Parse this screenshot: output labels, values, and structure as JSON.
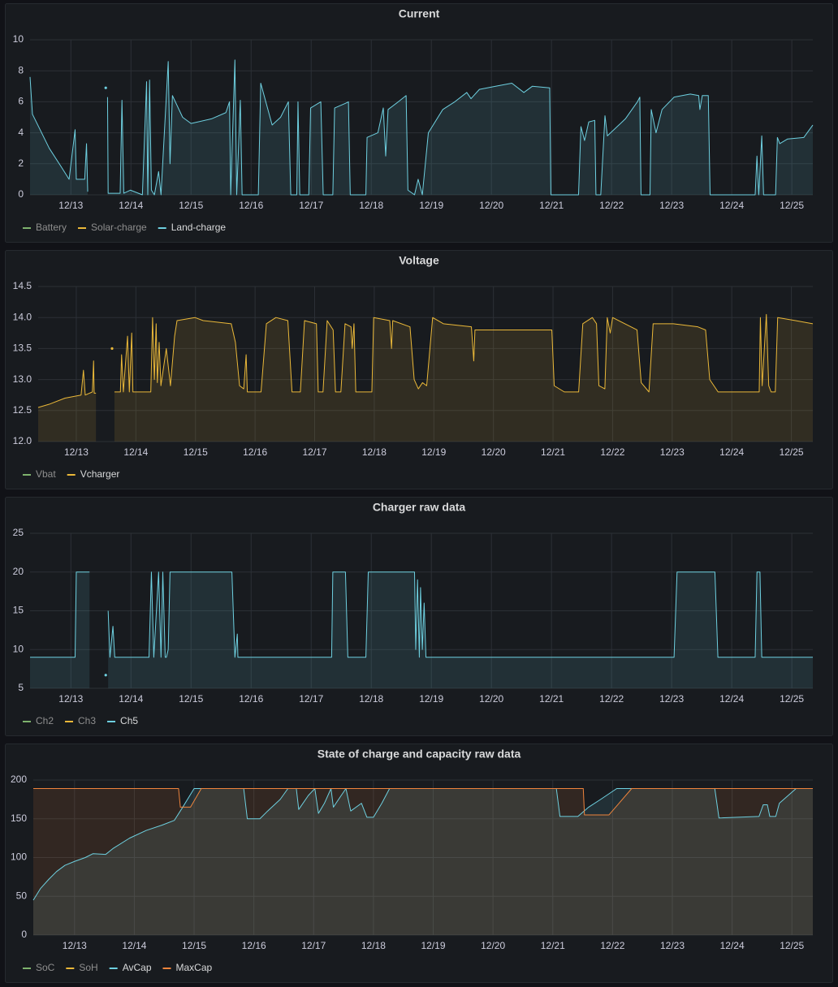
{
  "chart_data": [
    {
      "type": "line",
      "title": "Current",
      "grid": true,
      "xlim": [
        12.32,
        25.35
      ],
      "ylim": [
        0,
        10
      ],
      "yticks": [
        0,
        2,
        4,
        6,
        8,
        10
      ],
      "xticks": [
        {
          "value": 13,
          "label": "12/13"
        },
        {
          "value": 14,
          "label": "12/14"
        },
        {
          "value": 15,
          "label": "12/15"
        },
        {
          "value": 16,
          "label": "12/16"
        },
        {
          "value": 17,
          "label": "12/17"
        },
        {
          "value": 18,
          "label": "12/18"
        },
        {
          "value": 19,
          "label": "12/19"
        },
        {
          "value": 20,
          "label": "12/20"
        },
        {
          "value": 21,
          "label": "12/21"
        },
        {
          "value": 22,
          "label": "12/22"
        },
        {
          "value": 23,
          "label": "12/23"
        },
        {
          "value": 24,
          "label": "12/24"
        },
        {
          "value": 25,
          "label": "12/25"
        }
      ],
      "series": [
        {
          "name": "Battery",
          "color": "#7EB26D",
          "x": [],
          "values": []
        },
        {
          "name": "Solar-charge",
          "color": "#EAB839",
          "x": [],
          "values": []
        },
        {
          "name": "Land-charge",
          "color": "#6ED0E0",
          "x": [
            12.32,
            12.36,
            12.64,
            12.84,
            12.97,
            13.07,
            13.09,
            13.23,
            13.26,
            13.28,
            13.45,
            13.58,
            13.6,
            13.61,
            13.62,
            13.82,
            13.85,
            13.88,
            13.99,
            14.19,
            14.26,
            14.28,
            14.31,
            14.34,
            14.39,
            14.46,
            14.5,
            14.62,
            14.65,
            14.69,
            14.86,
            15.0,
            15.34,
            15.58,
            15.64,
            15.66,
            15.73,
            15.76,
            15.82,
            15.85,
            16.12,
            16.16,
            16.35,
            16.49,
            16.62,
            16.66,
            16.76,
            16.78,
            16.81,
            16.96,
            16.99,
            17.16,
            17.2,
            17.36,
            17.39,
            17.57,
            17.62,
            17.65,
            17.91,
            17.93,
            18.11,
            18.2,
            18.24,
            18.28,
            18.45,
            18.58,
            18.61,
            18.72,
            18.78,
            18.85,
            18.95,
            19.19,
            19.39,
            19.59,
            19.66,
            19.8,
            20.07,
            20.34,
            20.54,
            20.68,
            20.97,
            20.99,
            21.45,
            21.49,
            21.55,
            21.62,
            21.72,
            21.74,
            21.82,
            21.89,
            21.93,
            22.23,
            22.43,
            22.47,
            22.49,
            22.64,
            22.66,
            22.74,
            22.84,
            23.04,
            23.31,
            23.45,
            23.47,
            23.51,
            23.61,
            23.64,
            24.39,
            24.42,
            24.45,
            24.5,
            24.53,
            24.73,
            24.76,
            24.8,
            24.93,
            25.2,
            25.35
          ],
          "values": [
            7.6,
            5.2,
            3,
            1.8,
            1,
            4.2,
            1,
            1,
            3.3,
            0.2,
            null,
            6.9,
            null,
            6.3,
            0.1,
            0.1,
            6.1,
            0.1,
            0.3,
            0,
            7.3,
            0,
            7.4,
            0.3,
            0,
            1.5,
            0,
            8.6,
            2,
            6.4,
            5,
            4.6,
            4.9,
            5.3,
            6,
            0,
            8.7,
            0,
            6.1,
            0,
            0,
            7.2,
            4.5,
            5,
            6,
            0,
            0,
            6,
            0,
            0,
            5.6,
            6,
            0,
            0,
            5.6,
            5.9,
            6,
            0,
            0,
            3.7,
            4,
            5.6,
            2.5,
            5.5,
            6,
            6.4,
            0.3,
            0,
            1,
            0,
            4,
            5.5,
            6,
            6.6,
            6.2,
            6.8,
            7,
            7.2,
            6.6,
            7,
            6.9,
            0,
            0,
            4.4,
            3.5,
            4.7,
            4.8,
            0,
            0,
            5.1,
            3.8,
            4.9,
            6,
            6.3,
            0,
            0,
            5.5,
            4,
            5.5,
            6.3,
            6.5,
            6.4,
            5.5,
            6.4,
            6.4,
            0,
            0,
            2.5,
            0,
            3.8,
            0,
            0,
            3.7,
            3.3,
            3.6,
            3.7,
            4.5
          ]
        }
      ]
    },
    {
      "type": "line",
      "title": "Voltage",
      "grid": true,
      "xlim": [
        12.36,
        25.36
      ],
      "ylim": [
        12,
        14.5
      ],
      "yticks": [
        {
          "value": 12,
          "label": "12.0"
        },
        {
          "value": 12.5,
          "label": "12.5"
        },
        {
          "value": 13,
          "label": "13.0"
        },
        {
          "value": 13.5,
          "label": "13.5"
        },
        {
          "value": 14,
          "label": "14.0"
        },
        {
          "value": 14.5,
          "label": "14.5"
        }
      ],
      "xticks": [
        {
          "value": 13,
          "label": "12/13"
        },
        {
          "value": 14,
          "label": "12/14"
        },
        {
          "value": 15,
          "label": "12/15"
        },
        {
          "value": 16,
          "label": "12/16"
        },
        {
          "value": 17,
          "label": "12/17"
        },
        {
          "value": 18,
          "label": "12/18"
        },
        {
          "value": 19,
          "label": "12/19"
        },
        {
          "value": 20,
          "label": "12/20"
        },
        {
          "value": 21,
          "label": "12/21"
        },
        {
          "value": 22,
          "label": "12/22"
        },
        {
          "value": 23,
          "label": "12/23"
        },
        {
          "value": 24,
          "label": "12/24"
        },
        {
          "value": 25,
          "label": "12/25"
        }
      ],
      "series": [
        {
          "name": "Vbat",
          "color": "#7EB26D",
          "x": [],
          "values": []
        },
        {
          "name": "Vcharger",
          "color": "#EAB839",
          "x": [
            12.36,
            12.54,
            12.81,
            13.08,
            13.12,
            13.15,
            13.27,
            13.29,
            13.3,
            13.33,
            13.45,
            13.6,
            13.62,
            13.64,
            13.74,
            13.76,
            13.79,
            13.86,
            13.89,
            13.93,
            13.95,
            14.04,
            14.25,
            14.28,
            14.31,
            14.34,
            14.36,
            14.39,
            14.42,
            14.51,
            14.58,
            14.65,
            14.69,
            14.99,
            15.13,
            15.6,
            15.67,
            15.74,
            15.81,
            15.85,
            15.87,
            16.1,
            16.19,
            16.35,
            16.55,
            16.62,
            16.76,
            16.83,
            17.03,
            17.06,
            17.14,
            17.21,
            17.31,
            17.35,
            17.44,
            17.51,
            17.61,
            17.63,
            17.66,
            17.69,
            17.96,
            17.99,
            18.26,
            18.29,
            18.31,
            18.6,
            18.67,
            18.74,
            18.81,
            18.88,
            18.98,
            19.16,
            19.63,
            19.67,
            19.69,
            20.3,
            20.98,
            21.02,
            21.19,
            21.43,
            21.5,
            21.66,
            21.73,
            21.77,
            21.87,
            21.91,
            21.96,
            22.0,
            22.41,
            22.48,
            22.61,
            22.68,
            23.02,
            23.43,
            23.56,
            23.63,
            23.77,
            24.39,
            24.46,
            24.48,
            24.51,
            24.58,
            24.62,
            24.66,
            24.73,
            24.77,
            25.07,
            25.36
          ],
          "values": [
            12.55,
            12.6,
            12.7,
            12.75,
            13.15,
            12.75,
            12.8,
            13.3,
            12.78,
            12.78,
            null,
            13.5,
            null,
            12.8,
            12.8,
            13.4,
            12.8,
            13.7,
            12.8,
            13.75,
            12.8,
            12.8,
            12.8,
            14.0,
            13.0,
            13.9,
            12.95,
            13.6,
            12.9,
            13.5,
            12.9,
            13.7,
            13.95,
            14.0,
            13.95,
            13.9,
            13.6,
            12.9,
            12.85,
            13.4,
            12.8,
            12.8,
            13.9,
            14.0,
            13.95,
            12.8,
            12.8,
            13.95,
            13.9,
            12.8,
            12.8,
            13.95,
            13.8,
            12.8,
            12.8,
            13.9,
            13.85,
            13.5,
            13.9,
            12.8,
            12.8,
            14.0,
            13.95,
            13.5,
            13.95,
            13.85,
            13.0,
            12.85,
            12.95,
            12.9,
            14.0,
            13.9,
            13.85,
            13.3,
            13.8,
            13.8,
            13.8,
            12.9,
            12.8,
            12.8,
            13.9,
            14.0,
            13.9,
            12.9,
            12.85,
            14.0,
            13.75,
            14.0,
            13.8,
            12.95,
            12.8,
            13.9,
            13.9,
            13.85,
            13.8,
            13.0,
            12.8,
            12.8,
            12.8,
            14.0,
            12.9,
            14.05,
            12.9,
            12.8,
            12.8,
            14.0,
            13.95,
            13.9
          ]
        }
      ]
    },
    {
      "type": "line",
      "title": "Charger raw data",
      "grid": true,
      "xlim": [
        12.32,
        25.35
      ],
      "ylim": [
        5,
        25
      ],
      "yticks": [
        5,
        10,
        15,
        20,
        25
      ],
      "xticks": [
        {
          "value": 13,
          "label": "12/13"
        },
        {
          "value": 14,
          "label": "12/14"
        },
        {
          "value": 15,
          "label": "12/15"
        },
        {
          "value": 16,
          "label": "12/16"
        },
        {
          "value": 17,
          "label": "12/17"
        },
        {
          "value": 18,
          "label": "12/18"
        },
        {
          "value": 19,
          "label": "12/19"
        },
        {
          "value": 20,
          "label": "12/20"
        },
        {
          "value": 21,
          "label": "12/21"
        },
        {
          "value": 22,
          "label": "12/22"
        },
        {
          "value": 23,
          "label": "12/23"
        },
        {
          "value": 24,
          "label": "12/24"
        },
        {
          "value": 25,
          "label": "12/25"
        }
      ],
      "series": [
        {
          "name": "Ch2",
          "color": "#7EB26D",
          "x": [],
          "values": []
        },
        {
          "name": "Ch3",
          "color": "#EAB839",
          "x": [],
          "values": []
        },
        {
          "name": "Ch5",
          "color": "#6ED0E0",
          "x": [
            12.32,
            13.07,
            13.09,
            13.31,
            13.45,
            13.58,
            13.6,
            13.62,
            13.65,
            13.7,
            13.73,
            14.3,
            14.34,
            14.38,
            14.46,
            14.5,
            14.53,
            14.57,
            14.59,
            14.62,
            14.65,
            15.68,
            15.73,
            15.77,
            15.78,
            17.34,
            17.36,
            17.57,
            17.61,
            17.91,
            17.95,
            18.72,
            18.74,
            18.77,
            18.8,
            18.82,
            18.85,
            18.88,
            18.91,
            23.04,
            23.09,
            23.72,
            23.77,
            24.39,
            24.42,
            24.47,
            24.5,
            25.35
          ],
          "values": [
            9,
            9,
            20,
            20,
            null,
            6.7,
            null,
            15,
            9,
            13,
            9,
            9,
            20,
            9,
            20,
            9,
            20,
            9,
            9,
            10,
            20,
            20,
            9,
            12,
            9,
            9,
            20,
            20,
            9,
            9,
            20,
            20,
            10,
            19,
            9,
            18,
            10,
            16,
            9,
            9,
            20,
            20,
            9,
            9,
            20,
            20,
            9,
            9
          ]
        }
      ]
    },
    {
      "type": "line",
      "title": "State of charge and capacity raw data",
      "grid": true,
      "xlim": [
        12.31,
        25.35
      ],
      "ylim": [
        0,
        200
      ],
      "yticks": [
        0,
        50,
        100,
        150,
        200
      ],
      "xticks": [
        {
          "value": 13,
          "label": "12/13"
        },
        {
          "value": 14,
          "label": "12/14"
        },
        {
          "value": 15,
          "label": "12/15"
        },
        {
          "value": 16,
          "label": "12/16"
        },
        {
          "value": 17,
          "label": "12/17"
        },
        {
          "value": 18,
          "label": "12/18"
        },
        {
          "value": 19,
          "label": "12/19"
        },
        {
          "value": 20,
          "label": "12/20"
        },
        {
          "value": 21,
          "label": "12/21"
        },
        {
          "value": 22,
          "label": "12/22"
        },
        {
          "value": 23,
          "label": "12/23"
        },
        {
          "value": 24,
          "label": "12/24"
        },
        {
          "value": 25,
          "label": "12/25"
        }
      ],
      "series": [
        {
          "name": "SoC",
          "color": "#7EB26D",
          "x": [],
          "values": []
        },
        {
          "name": "SoH",
          "color": "#EAB839",
          "x": [],
          "values": []
        },
        {
          "name": "AvCap",
          "color": "#6ED0E0",
          "x": [
            12.31,
            12.43,
            12.57,
            12.7,
            12.84,
            13.0,
            13.18,
            13.31,
            13.52,
            13.65,
            13.92,
            14.2,
            14.47,
            14.67,
            14.81,
            15.0,
            15.83,
            15.89,
            16.1,
            16.23,
            16.44,
            16.57,
            16.71,
            16.75,
            16.91,
            17.02,
            17.08,
            17.18,
            17.29,
            17.33,
            17.46,
            17.54,
            17.62,
            17.8,
            17.89,
            18.0,
            18.14,
            18.27,
            21.06,
            21.12,
            21.42,
            21.6,
            21.8,
            22.07,
            23.71,
            23.78,
            24.45,
            24.52,
            24.59,
            24.63,
            24.73,
            24.79,
            25.07,
            25.35
          ],
          "values": [
            45,
            60,
            72,
            82,
            90,
            95,
            100,
            105,
            104,
            112,
            125,
            135,
            142,
            148,
            165,
            189,
            189,
            150,
            150,
            160,
            175,
            189,
            189,
            162,
            180,
            189,
            157,
            170,
            189,
            165,
            180,
            189,
            160,
            170,
            152,
            152,
            170,
            189,
            189,
            153,
            153,
            165,
            175,
            189,
            189,
            151,
            153,
            168,
            168,
            153,
            153,
            170,
            189,
            189
          ]
        },
        {
          "name": "MaxCap",
          "color": "#EF843C",
          "x": [
            12.31,
            14.74,
            14.77,
            14.94,
            15.12,
            21.06,
            21.51,
            21.53,
            21.94,
            22.32,
            25.35
          ],
          "values": [
            189,
            189,
            165,
            165,
            189,
            189,
            189,
            155,
            155,
            189,
            189
          ]
        }
      ]
    }
  ]
}
